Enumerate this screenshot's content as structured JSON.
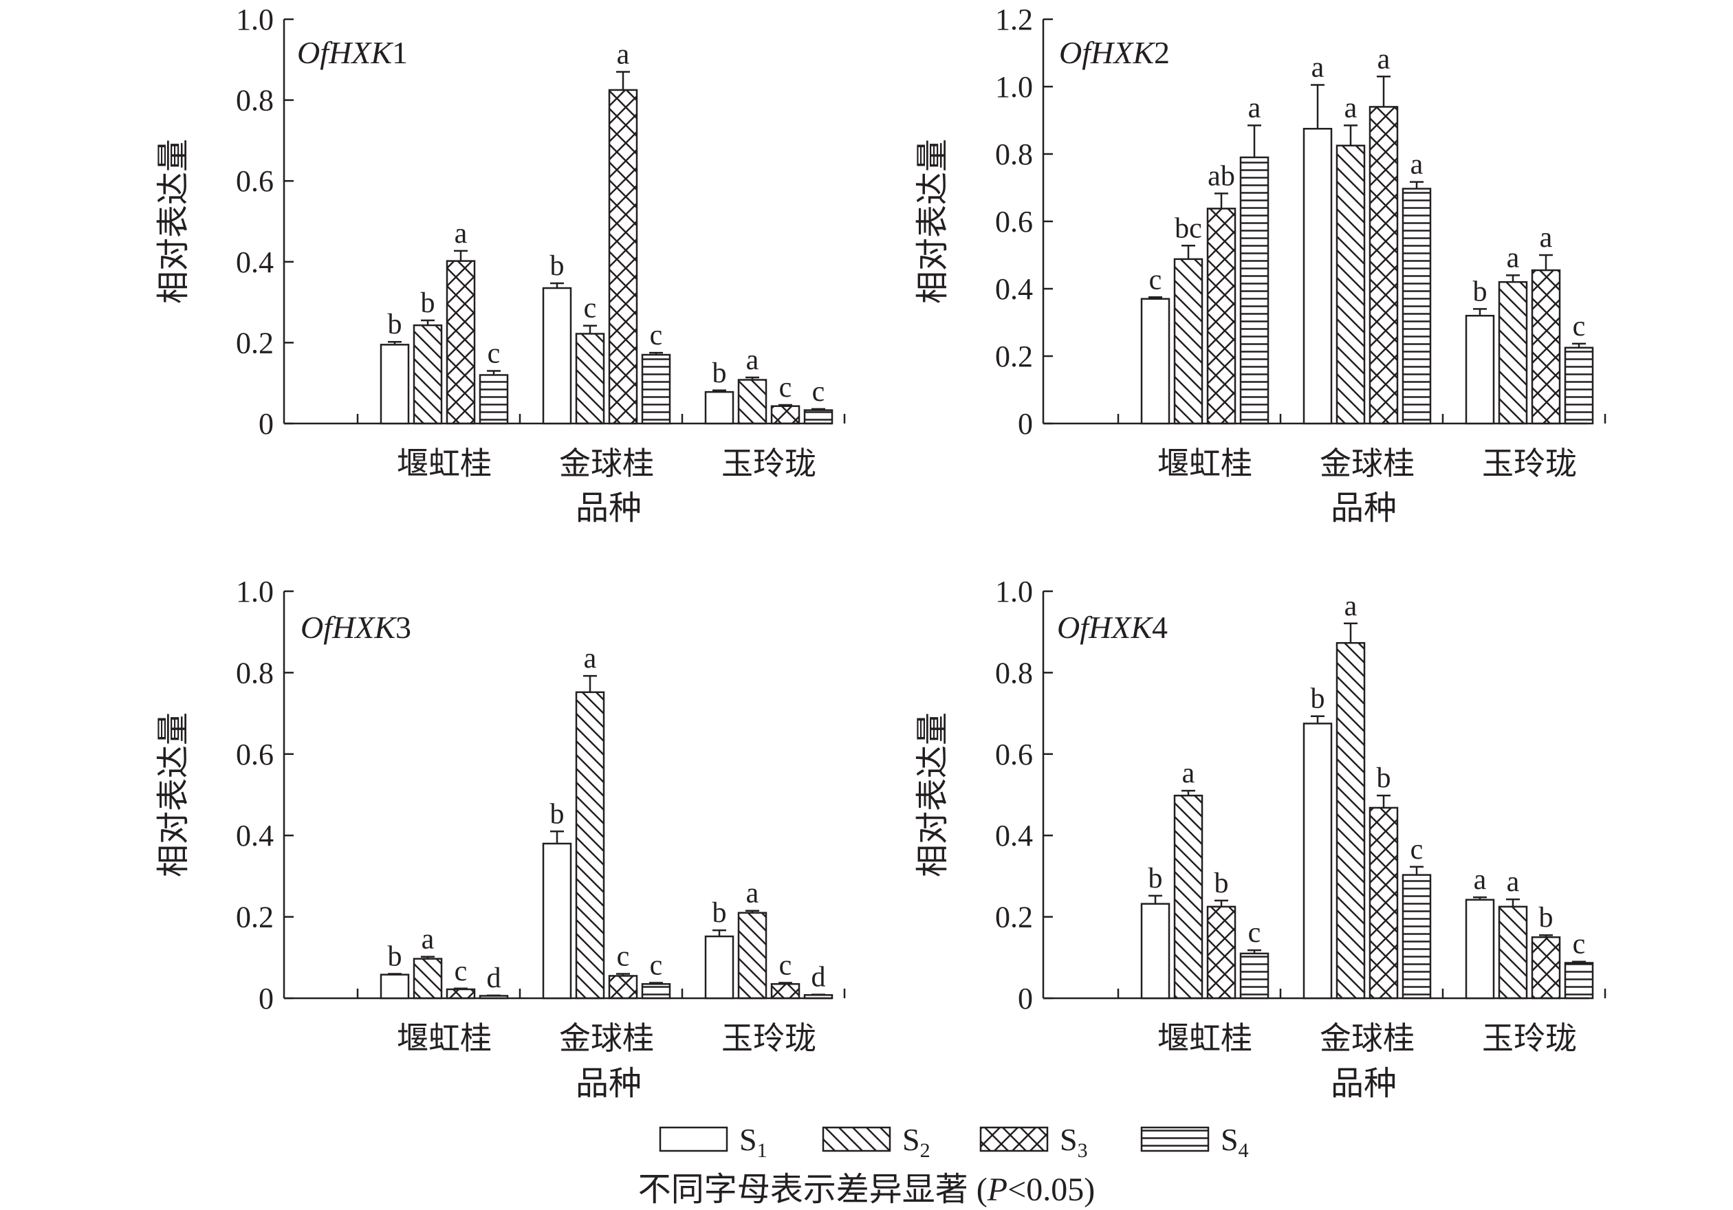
{
  "chart_data": [
    {
      "type": "bar",
      "title_italic": "OfHXK",
      "title_num": "1",
      "ylabel": "相对表达量",
      "xlabel": "品种",
      "ylim": [
        0,
        1.0
      ],
      "yticks": [
        "0",
        "0.2",
        "0.4",
        "0.6",
        "0.8",
        "1.0"
      ],
      "categories": [
        "堰虹桂",
        "金球桂",
        "玉玲珑"
      ],
      "series": [
        {
          "name": "S1",
          "values": [
            0.195,
            0.335,
            0.078
          ],
          "errors": [
            0.007,
            0.012,
            0.004
          ],
          "letters": [
            "b",
            "b",
            "b"
          ]
        },
        {
          "name": "S2",
          "values": [
            0.243,
            0.222,
            0.108
          ],
          "errors": [
            0.012,
            0.02,
            0.006
          ],
          "letters": [
            "b",
            "c",
            "a"
          ]
        },
        {
          "name": "S3",
          "values": [
            0.402,
            0.825,
            0.043
          ],
          "errors": [
            0.025,
            0.045,
            0.003
          ],
          "letters": [
            "a",
            "a",
            "c"
          ]
        },
        {
          "name": "S4",
          "values": [
            0.12,
            0.17,
            0.033
          ],
          "errors": [
            0.01,
            0.005,
            0.003
          ],
          "letters": [
            "c",
            "c",
            "c"
          ]
        }
      ]
    },
    {
      "type": "bar",
      "title_italic": "OfHXK",
      "title_num": "2",
      "ylabel": "相对表达量",
      "xlabel": "品种",
      "ylim": [
        0,
        1.2
      ],
      "yticks": [
        "0",
        "0.2",
        "0.4",
        "0.6",
        "0.8",
        "1.0",
        "1.2"
      ],
      "categories": [
        "堰虹桂",
        "金球桂",
        "玉玲珑"
      ],
      "series": [
        {
          "name": "S1",
          "values": [
            0.37,
            0.875,
            0.32
          ],
          "errors": [
            0.005,
            0.13,
            0.02
          ],
          "letters": [
            "c",
            "a",
            "b"
          ]
        },
        {
          "name": "S2",
          "values": [
            0.488,
            0.825,
            0.42
          ],
          "errors": [
            0.04,
            0.06,
            0.02
          ],
          "letters": [
            "bc",
            "a",
            "a"
          ]
        },
        {
          "name": "S3",
          "values": [
            0.638,
            0.94,
            0.455
          ],
          "errors": [
            0.045,
            0.09,
            0.045
          ],
          "letters": [
            "ab",
            "a",
            "a"
          ]
        },
        {
          "name": "S4",
          "values": [
            0.79,
            0.697,
            0.225
          ],
          "errors": [
            0.095,
            0.02,
            0.012
          ],
          "letters": [
            "a",
            "a",
            "c"
          ]
        }
      ]
    },
    {
      "type": "bar",
      "title_italic": "OfHXK",
      "title_num": "3",
      "ylabel": "相对表达量",
      "xlabel": "品种",
      "ylim": [
        0,
        1.0
      ],
      "yticks": [
        "0",
        "0.2",
        "0.4",
        "0.6",
        "0.8",
        "1.0"
      ],
      "categories": [
        "堰虹桂",
        "金球桂",
        "玉玲珑"
      ],
      "series": [
        {
          "name": "S1",
          "values": [
            0.058,
            0.38,
            0.152
          ],
          "errors": [
            0.002,
            0.03,
            0.015
          ],
          "letters": [
            "b",
            "b",
            "b"
          ]
        },
        {
          "name": "S2",
          "values": [
            0.097,
            0.752,
            0.21
          ],
          "errors": [
            0.005,
            0.04,
            0.005
          ],
          "letters": [
            "a",
            "a",
            "a"
          ]
        },
        {
          "name": "S3",
          "values": [
            0.022,
            0.055,
            0.035
          ],
          "errors": [
            0.002,
            0.005,
            0.003
          ],
          "letters": [
            "c",
            "c",
            "c"
          ]
        },
        {
          "name": "S4",
          "values": [
            0.006,
            0.035,
            0.008
          ],
          "errors": [
            0.001,
            0.003,
            0.001
          ],
          "letters": [
            "d",
            "c",
            "d"
          ]
        }
      ]
    },
    {
      "type": "bar",
      "title_italic": "OfHXK",
      "title_num": "4",
      "ylabel": "相对表达量",
      "xlabel": "品种",
      "ylim": [
        0,
        1.0
      ],
      "yticks": [
        "0",
        "0.2",
        "0.4",
        "0.6",
        "0.8",
        "1.0"
      ],
      "categories": [
        "堰虹桂",
        "金球桂",
        "玉玲珑"
      ],
      "series": [
        {
          "name": "S1",
          "values": [
            0.232,
            0.675,
            0.242
          ],
          "errors": [
            0.02,
            0.018,
            0.006
          ],
          "letters": [
            "b",
            "b",
            "a"
          ]
        },
        {
          "name": "S2",
          "values": [
            0.498,
            0.873,
            0.225
          ],
          "errors": [
            0.012,
            0.048,
            0.018
          ],
          "letters": [
            "a",
            "a",
            "a"
          ]
        },
        {
          "name": "S3",
          "values": [
            0.225,
            0.468,
            0.15
          ],
          "errors": [
            0.015,
            0.03,
            0.005
          ],
          "letters": [
            "b",
            "b",
            "b"
          ]
        },
        {
          "name": "S4",
          "values": [
            0.11,
            0.303,
            0.087
          ],
          "errors": [
            0.008,
            0.02,
            0.003
          ],
          "letters": [
            "c",
            "c",
            "c"
          ]
        }
      ]
    }
  ],
  "legend": [
    {
      "label": "S",
      "sub": "1"
    },
    {
      "label": "S",
      "sub": "2"
    },
    {
      "label": "S",
      "sub": "3"
    },
    {
      "label": "S",
      "sub": "4"
    }
  ],
  "footnote": {
    "text": "不同字母表示差异显著 (",
    "p_italic": "P",
    "tail": "<0.05)"
  }
}
